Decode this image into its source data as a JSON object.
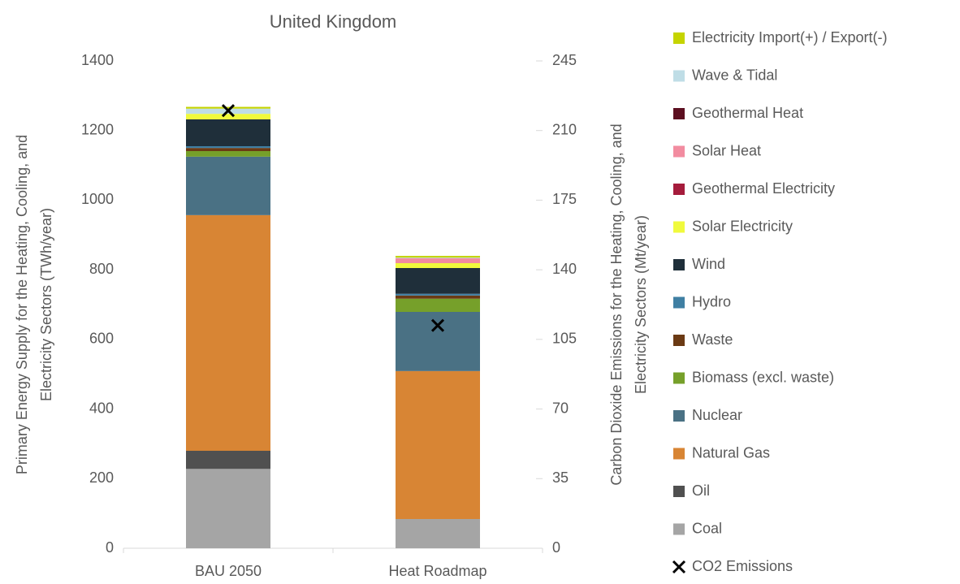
{
  "chart_data": {
    "type": "bar",
    "stacked": true,
    "title": "United Kingdom",
    "categories": [
      "BAU 2050",
      "Heat Roadmap"
    ],
    "ylabel": [
      "Primary Energy Supply for the Heating, Cooling, and",
      "Electricity Sectors (TWh/year)"
    ],
    "y2label": [
      "Carbon Dioxide Emissions for the Heating, Cooling, and",
      "Electricity Sectors (Mt/year)"
    ],
    "ylim": [
      0,
      1400
    ],
    "yticks": [
      0,
      200,
      400,
      600,
      800,
      1000,
      1200,
      1400
    ],
    "y2lim": [
      0,
      245
    ],
    "y2ticks": [
      0,
      35,
      70,
      105,
      140,
      175,
      210,
      245
    ],
    "grid": false,
    "legend": "right",
    "series": [
      {
        "name": "Coal",
        "color": "#a5a5a5",
        "values": [
          228,
          84
        ]
      },
      {
        "name": "Oil",
        "color": "#505050",
        "values": [
          52,
          0
        ]
      },
      {
        "name": "Natural Gas",
        "color": "#d88534",
        "values": [
          677,
          425
        ]
      },
      {
        "name": "Nuclear",
        "color": "#4a7184",
        "values": [
          168,
          170
        ]
      },
      {
        "name": "Biomass (excl. waste)",
        "color": "#76a02a",
        "values": [
          16,
          38
        ]
      },
      {
        "name": "Waste",
        "color": "#6b3a14",
        "values": [
          9,
          9
        ]
      },
      {
        "name": "Hydro",
        "color": "#3f7fa3",
        "values": [
          5,
          5
        ]
      },
      {
        "name": "Wind",
        "color": "#1f2f3a",
        "values": [
          77,
          74
        ]
      },
      {
        "name": "Solar Electricity",
        "color": "#f0fa3c",
        "values": [
          16,
          14
        ]
      },
      {
        "name": "Geothermal Electricity",
        "color": "#a51c3c",
        "values": [
          0,
          0
        ]
      },
      {
        "name": "Solar Heat",
        "color": "#f28ca0",
        "values": [
          0,
          14
        ]
      },
      {
        "name": "Geothermal Heat",
        "color": "#5c0f20",
        "values": [
          0,
          0
        ]
      },
      {
        "name": "Wave & Tidal",
        "color": "#bfdde6",
        "values": [
          15,
          2
        ]
      },
      {
        "name": "Electricity Import(+) / Export(-)",
        "color": "#c5d400",
        "values": [
          5,
          5
        ]
      },
      {
        "name": "CO2 Emissions",
        "color": "#000000",
        "axis": "y2",
        "marker": "x",
        "values": [
          220,
          112
        ]
      }
    ]
  }
}
